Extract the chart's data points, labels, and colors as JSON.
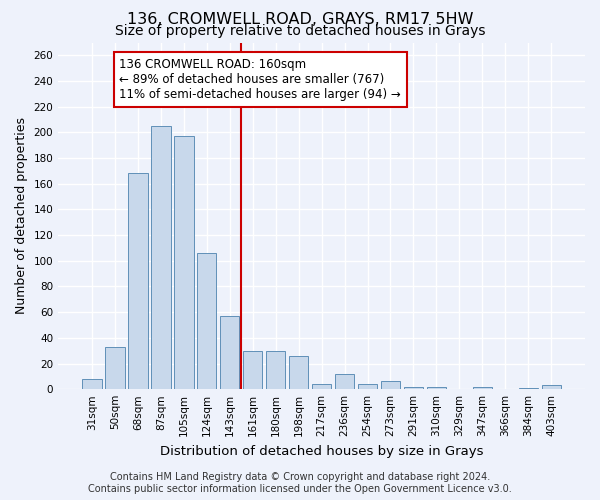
{
  "title": "136, CROMWELL ROAD, GRAYS, RM17 5HW",
  "subtitle": "Size of property relative to detached houses in Grays",
  "xlabel": "Distribution of detached houses by size in Grays",
  "ylabel": "Number of detached properties",
  "footer_line1": "Contains HM Land Registry data © Crown copyright and database right 2024.",
  "footer_line2": "Contains public sector information licensed under the Open Government Licence v3.0.",
  "annotation_line1": "136 CROMWELL ROAD: 160sqm",
  "annotation_line2": "← 89% of detached houses are smaller (767)",
  "annotation_line3": "11% of semi-detached houses are larger (94) →",
  "bar_color": "#c8d8eb",
  "bar_edge_color": "#6090b8",
  "vline_color": "#cc0000",
  "vline_x": 6.5,
  "categories": [
    "31sqm",
    "50sqm",
    "68sqm",
    "87sqm",
    "105sqm",
    "124sqm",
    "143sqm",
    "161sqm",
    "180sqm",
    "198sqm",
    "217sqm",
    "236sqm",
    "254sqm",
    "273sqm",
    "291sqm",
    "310sqm",
    "329sqm",
    "347sqm",
    "366sqm",
    "384sqm",
    "403sqm"
  ],
  "values": [
    8,
    33,
    168,
    205,
    197,
    106,
    57,
    30,
    30,
    26,
    4,
    12,
    4,
    6,
    2,
    2,
    0,
    2,
    0,
    1,
    3
  ],
  "ylim": [
    0,
    270
  ],
  "yticks": [
    0,
    20,
    40,
    60,
    80,
    100,
    120,
    140,
    160,
    180,
    200,
    220,
    240,
    260
  ],
  "background_color": "#eef2fb",
  "grid_color": "#ffffff",
  "title_fontsize": 11.5,
  "subtitle_fontsize": 10,
  "axis_label_fontsize": 9,
  "tick_fontsize": 7.5,
  "footer_fontsize": 7,
  "annotation_fontsize": 8.5
}
